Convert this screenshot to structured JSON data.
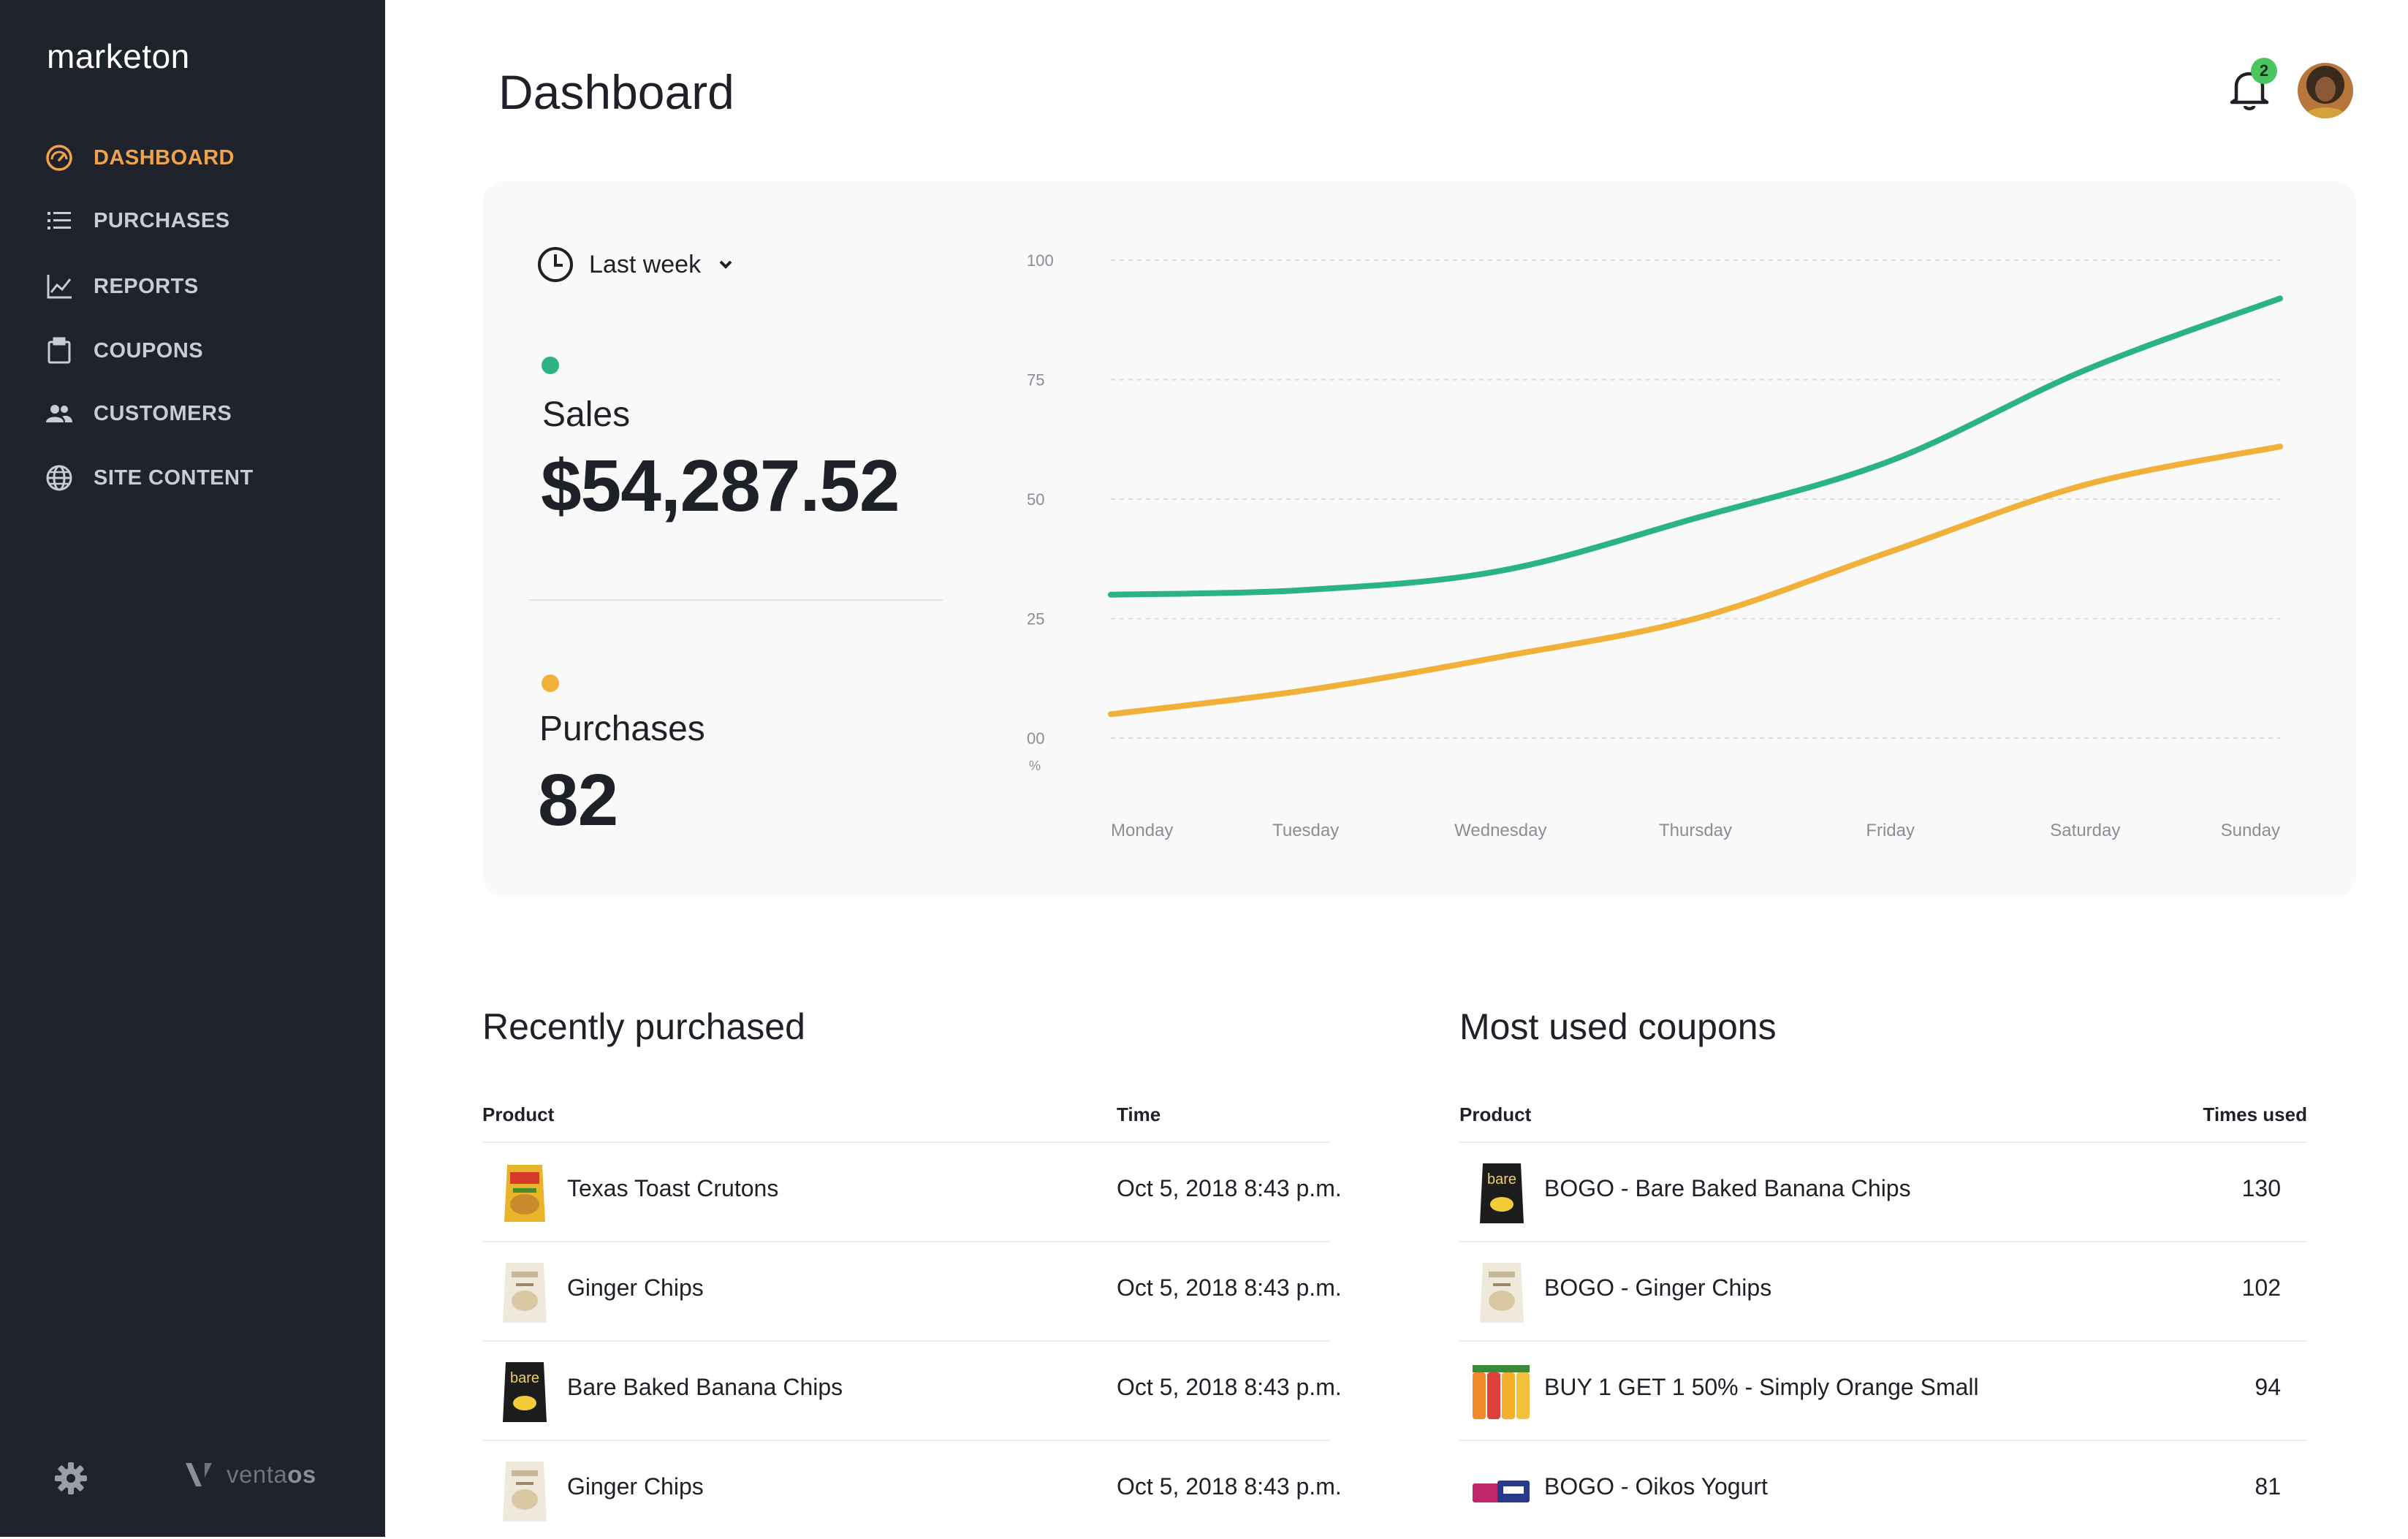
{
  "app": {
    "brand": "marketon"
  },
  "sidebar": {
    "items": [
      {
        "label": "DASHBOARD",
        "icon": "dashboard-gauge-icon",
        "active": true
      },
      {
        "label": "PURCHASES",
        "icon": "list-icon",
        "active": false
      },
      {
        "label": "REPORTS",
        "icon": "line-chart-icon",
        "active": false
      },
      {
        "label": "COUPONS",
        "icon": "clipboard-icon",
        "active": false
      },
      {
        "label": "CUSTOMERS",
        "icon": "people-icon",
        "active": false
      },
      {
        "label": "SITE CONTENT",
        "icon": "globe-icon",
        "active": false
      }
    ],
    "footer": {
      "settings_icon": "gear-icon",
      "vendor_prefix": "venta",
      "vendor_suffix": "os"
    }
  },
  "header": {
    "title": "Dashboard",
    "notifications_count": "2"
  },
  "summary": {
    "period": "Last week",
    "sales": {
      "label": "Sales",
      "value": "$54,287.52",
      "color": "#2bb381"
    },
    "purchases": {
      "label": "Purchases",
      "value": "82",
      "color": "#f0b03a"
    }
  },
  "chart_data": {
    "type": "line",
    "x": [
      "Monday",
      "Tuesday",
      "Wednesday",
      "Thursday",
      "Friday",
      "Saturday",
      "Sunday"
    ],
    "yticks": [
      "100",
      "75",
      "50",
      "25",
      "00"
    ],
    "yunit": "%",
    "ylim": [
      0,
      100
    ],
    "grid": true,
    "series": [
      {
        "color": "#2bb381",
        "values": [
          30,
          31,
          35,
          46,
          58,
          77,
          92
        ]
      },
      {
        "color": "#f0b03a",
        "values": [
          5,
          10,
          17,
          25,
          39,
          53,
          61
        ]
      }
    ]
  },
  "recent": {
    "title": "Recently purchased",
    "col_product": "Product",
    "col_time": "Time",
    "rows": [
      {
        "product": "Texas Toast Crutons",
        "time": "Oct 5, 2018 8:43 p.m.",
        "thumb": "crutons-bag-icon"
      },
      {
        "product": "Ginger Chips",
        "time": "Oct 5, 2018 8:43 p.m.",
        "thumb": "ginger-chips-bag-icon"
      },
      {
        "product": "Bare Baked Banana Chips",
        "time": "Oct 5, 2018 8:43 p.m.",
        "thumb": "banana-chips-bag-icon"
      },
      {
        "product": "Ginger Chips",
        "time": "Oct 5, 2018 8:43 p.m.",
        "thumb": "ginger-chips-bag-icon"
      }
    ]
  },
  "coupons": {
    "title": "Most used coupons",
    "col_product": "Product",
    "col_times": "Times used",
    "rows": [
      {
        "product": "BOGO - Bare Baked Banana Chips",
        "times": "130",
        "thumb": "banana-chips-bag-icon"
      },
      {
        "product": "BOGO - Ginger Chips",
        "times": "102",
        "thumb": "ginger-chips-bag-icon"
      },
      {
        "product": "BUY 1 GET 1 50% - Simply Orange Small",
        "times": "94",
        "thumb": "juice-bottles-icon"
      },
      {
        "product": "BOGO - Oikos Yogurt",
        "times": "81",
        "thumb": "yogurt-cups-icon"
      }
    ]
  }
}
